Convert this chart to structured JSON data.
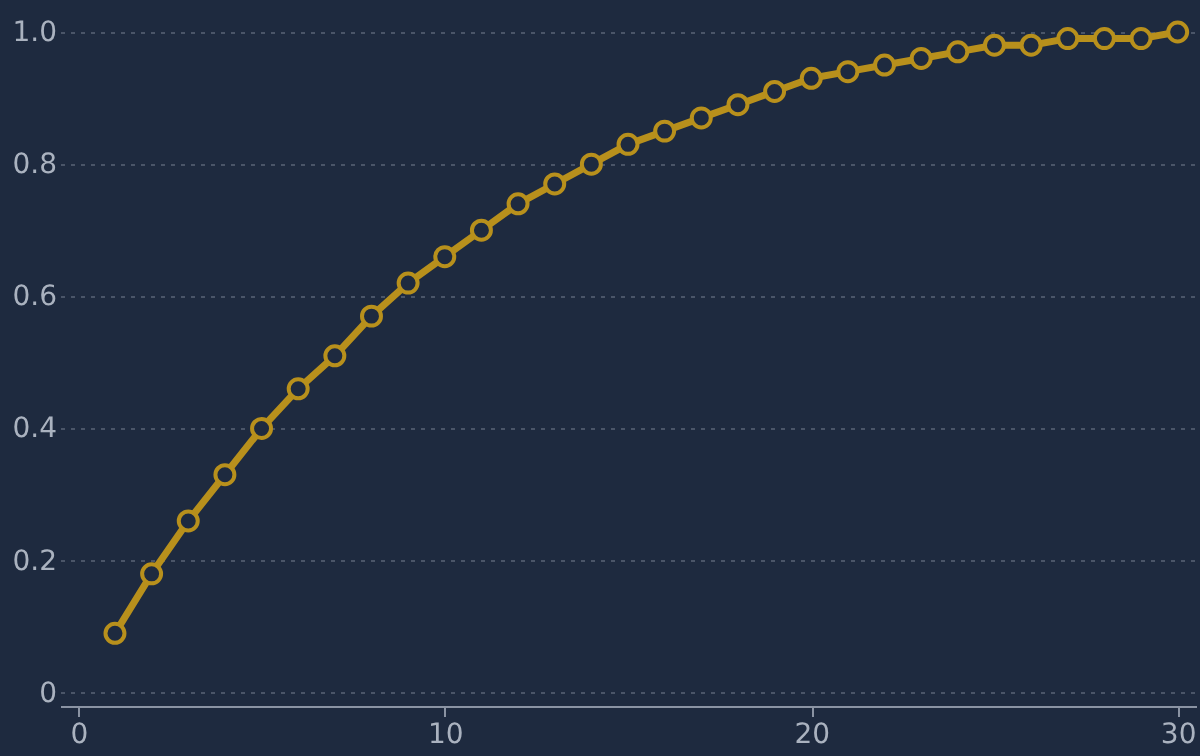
{
  "chart_data": {
    "type": "line",
    "x": [
      1,
      2,
      3,
      4,
      5,
      6,
      7,
      8,
      9,
      10,
      11,
      12,
      13,
      14,
      15,
      16,
      17,
      18,
      19,
      20,
      21,
      22,
      23,
      24,
      25,
      26,
      27,
      28,
      29,
      30
    ],
    "series": [
      {
        "color": "#b8901c",
        "values": [
          0.09,
          0.18,
          0.26,
          0.33,
          0.4,
          0.46,
          0.51,
          0.57,
          0.62,
          0.66,
          0.7,
          0.74,
          0.77,
          0.8,
          0.83,
          0.85,
          0.87,
          0.89,
          0.91,
          0.93,
          0.94,
          0.95,
          0.96,
          0.97,
          0.98,
          0.98,
          0.99,
          0.99,
          0.99,
          1.0
        ]
      }
    ],
    "xlim": [
      -0.5,
      30.5
    ],
    "xticks": [
      0,
      10,
      20,
      30
    ],
    "ylim": [
      -0.02,
      1
    ],
    "yticks": [
      0,
      0.2,
      0.4,
      0.6,
      0.8,
      {
        "value": 1,
        "label": "1.0"
      }
    ],
    "grid": "y",
    "marker": "circle",
    "line_style": "solid"
  }
}
